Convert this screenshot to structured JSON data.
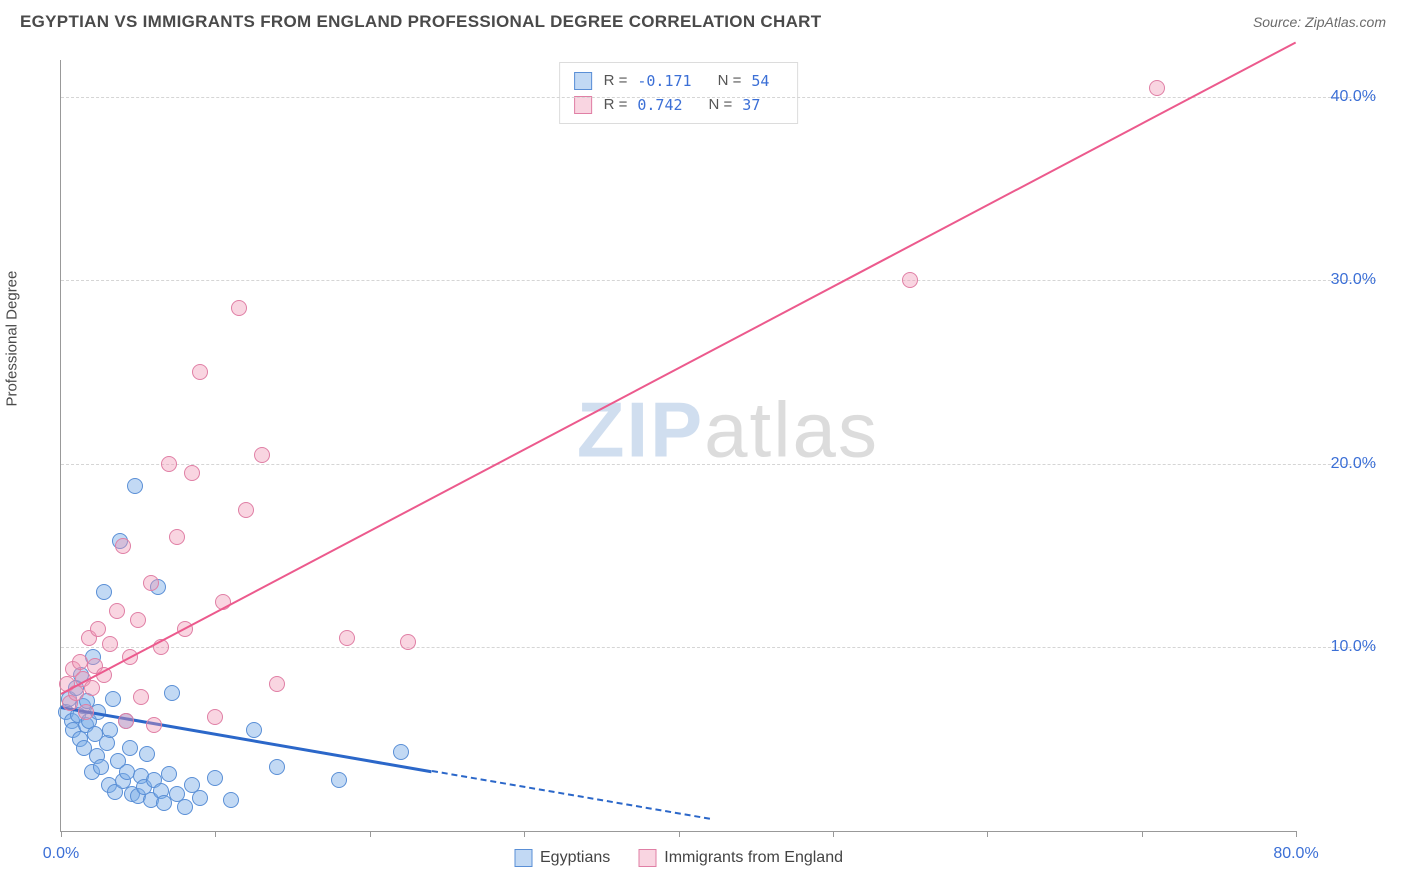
{
  "header": {
    "title": "EGYPTIAN VS IMMIGRANTS FROM ENGLAND PROFESSIONAL DEGREE CORRELATION CHART",
    "source_prefix": "Source: ",
    "source_name": "ZipAtlas.com"
  },
  "ylabel": "Professional Degree",
  "watermark": {
    "part1": "ZIP",
    "part2": "atlas"
  },
  "chart": {
    "type": "scatter",
    "background_color": "#ffffff",
    "grid_color": "#d5d5d5",
    "axis_color": "#999999",
    "tick_label_color": "#3b6fd6",
    "xlim": [
      0,
      80
    ],
    "ylim": [
      0,
      42
    ],
    "yticks": [
      {
        "v": 10,
        "label": "10.0%"
      },
      {
        "v": 20,
        "label": "20.0%"
      },
      {
        "v": 30,
        "label": "30.0%"
      },
      {
        "v": 40,
        "label": "40.0%"
      }
    ],
    "xticks": [
      0,
      10,
      20,
      30,
      40,
      50,
      60,
      70,
      80
    ],
    "xlabel_left": {
      "v": 0,
      "label": "0.0%"
    },
    "xlabel_right": {
      "v": 80,
      "label": "80.0%"
    },
    "series": [
      {
        "key": "egyptians",
        "label": "Egyptians",
        "marker_radius": 8,
        "fill_color": "rgba(120,170,230,0.45)",
        "stroke_color": "#5a8fd6",
        "line_color": "#2b67c9",
        "line_width": 3,
        "R_label": "R =",
        "R": "-0.171",
        "N_label": "N =",
        "N": "54",
        "trend": {
          "x1": 0,
          "y1": 6.8,
          "x2": 24,
          "y2": 3.3,
          "dashed_extend_to_x": 42,
          "dashed_extend_to_y": 0.7
        },
        "points": [
          [
            0.3,
            6.5
          ],
          [
            0.5,
            7.2
          ],
          [
            0.7,
            6.0
          ],
          [
            0.8,
            5.5
          ],
          [
            1.0,
            7.8
          ],
          [
            1.1,
            6.3
          ],
          [
            1.2,
            5.0
          ],
          [
            1.3,
            8.5
          ],
          [
            1.4,
            6.8
          ],
          [
            1.5,
            4.5
          ],
          [
            1.6,
            5.8
          ],
          [
            1.7,
            7.1
          ],
          [
            1.8,
            6.0
          ],
          [
            2.0,
            3.2
          ],
          [
            2.1,
            9.5
          ],
          [
            2.2,
            5.3
          ],
          [
            2.3,
            4.1
          ],
          [
            2.4,
            6.5
          ],
          [
            2.6,
            3.5
          ],
          [
            2.8,
            13.0
          ],
          [
            3.0,
            4.8
          ],
          [
            3.1,
            2.5
          ],
          [
            3.2,
            5.5
          ],
          [
            3.4,
            7.2
          ],
          [
            3.5,
            2.1
          ],
          [
            3.7,
            3.8
          ],
          [
            3.8,
            15.8
          ],
          [
            4.0,
            2.7
          ],
          [
            4.2,
            6.0
          ],
          [
            4.3,
            3.2
          ],
          [
            4.5,
            4.5
          ],
          [
            4.6,
            2.0
          ],
          [
            4.8,
            18.8
          ],
          [
            5.0,
            1.9
          ],
          [
            5.2,
            3.0
          ],
          [
            5.4,
            2.4
          ],
          [
            5.6,
            4.2
          ],
          [
            5.8,
            1.7
          ],
          [
            6.0,
            2.8
          ],
          [
            6.3,
            13.3
          ],
          [
            6.5,
            2.2
          ],
          [
            6.7,
            1.5
          ],
          [
            7.0,
            3.1
          ],
          [
            7.2,
            7.5
          ],
          [
            7.5,
            2.0
          ],
          [
            8.0,
            1.3
          ],
          [
            8.5,
            2.5
          ],
          [
            9.0,
            1.8
          ],
          [
            10.0,
            2.9
          ],
          [
            11.0,
            1.7
          ],
          [
            14.0,
            3.5
          ],
          [
            18.0,
            2.8
          ],
          [
            22.0,
            4.3
          ],
          [
            12.5,
            5.5
          ]
        ]
      },
      {
        "key": "england",
        "label": "Immigrants from England",
        "marker_radius": 8,
        "fill_color": "rgba(240,150,180,0.4)",
        "stroke_color": "#e07fa5",
        "line_color": "#ec5a8d",
        "line_width": 2,
        "R_label": "R =",
        "R": "0.742",
        "N_label": "N =",
        "N": "37",
        "trend": {
          "x1": 0,
          "y1": 7.5,
          "x2": 80,
          "y2": 43.0
        },
        "points": [
          [
            0.4,
            8.0
          ],
          [
            0.6,
            7.0
          ],
          [
            0.8,
            8.8
          ],
          [
            1.0,
            7.5
          ],
          [
            1.2,
            9.2
          ],
          [
            1.4,
            8.3
          ],
          [
            1.6,
            6.5
          ],
          [
            1.8,
            10.5
          ],
          [
            2.0,
            7.8
          ],
          [
            2.2,
            9.0
          ],
          [
            2.4,
            11.0
          ],
          [
            2.8,
            8.5
          ],
          [
            3.2,
            10.2
          ],
          [
            3.6,
            12.0
          ],
          [
            4.0,
            15.5
          ],
          [
            4.5,
            9.5
          ],
          [
            5.0,
            11.5
          ],
          [
            5.2,
            7.3
          ],
          [
            5.8,
            13.5
          ],
          [
            6.5,
            10.0
          ],
          [
            7.0,
            20.0
          ],
          [
            7.5,
            16.0
          ],
          [
            8.0,
            11.0
          ],
          [
            8.5,
            19.5
          ],
          [
            9.0,
            25.0
          ],
          [
            10.0,
            6.2
          ],
          [
            10.5,
            12.5
          ],
          [
            11.5,
            28.5
          ],
          [
            12.0,
            17.5
          ],
          [
            13.0,
            20.5
          ],
          [
            14.0,
            8.0
          ],
          [
            18.5,
            10.5
          ],
          [
            22.5,
            10.3
          ],
          [
            55.0,
            30.0
          ],
          [
            71.0,
            40.5
          ],
          [
            4.2,
            6.0
          ],
          [
            6.0,
            5.8
          ]
        ]
      }
    ]
  }
}
